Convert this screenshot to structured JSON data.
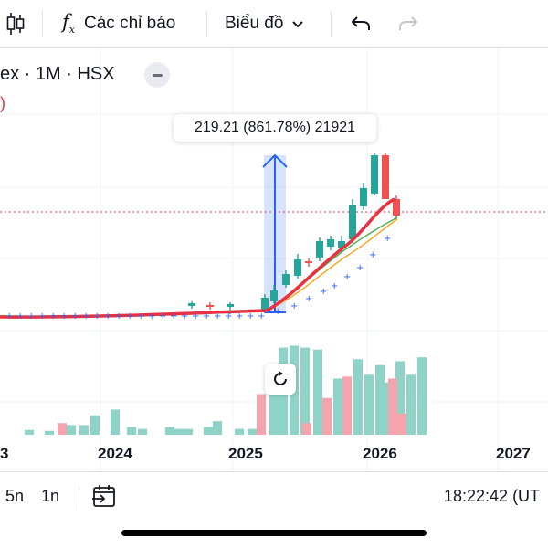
{
  "toolbar": {
    "candles_icon": "candlestick-icon",
    "indicators_icon": "fx-icon",
    "indicators_label": "Các chỉ báo",
    "chart_type_label": "Biểu đồ",
    "undo_icon": "undo-icon",
    "redo_icon": "redo-icon"
  },
  "legend": {
    "symbol_text": "ex · 1M · HSX",
    "paren_text": ")"
  },
  "measure": {
    "label": "219.21 (861.78%) 21921"
  },
  "colors": {
    "up": "#26a69a",
    "down": "#ef5350",
    "ma": "#e8323f",
    "measure": "#2962ff",
    "vol_up": "#8dd3c7",
    "vol_down": "#f5a3ad"
  },
  "x_axis": {
    "labels": [
      "3",
      "2024",
      "2025",
      "2026",
      "2027"
    ]
  },
  "bottom_bar": {
    "range_5n": "5n",
    "range_1n": "1n",
    "goto_icon": "go-to-date-icon",
    "clock": "18:22:42 (UT"
  },
  "chart_data": {
    "type": "candlestick",
    "measure_change": 219.21,
    "measure_percent": 861.78,
    "volume_up_heights": [
      0.05,
      0.04,
      0.1,
      0.1,
      0.2,
      0.26,
      0.08,
      0.06,
      0.08,
      0.06,
      0.06,
      0.08,
      0.14,
      0.06,
      0.06,
      0.44,
      0.9,
      0.92,
      0.9,
      0.88,
      0.58,
      0.78,
      0.62,
      0.72,
      0.54,
      0.76,
      0.62,
      0.8
    ],
    "volume_down_heights": [
      0.12,
      0.12,
      0.38,
      0.6,
      0.58,
      0.42,
      0.22
    ]
  }
}
